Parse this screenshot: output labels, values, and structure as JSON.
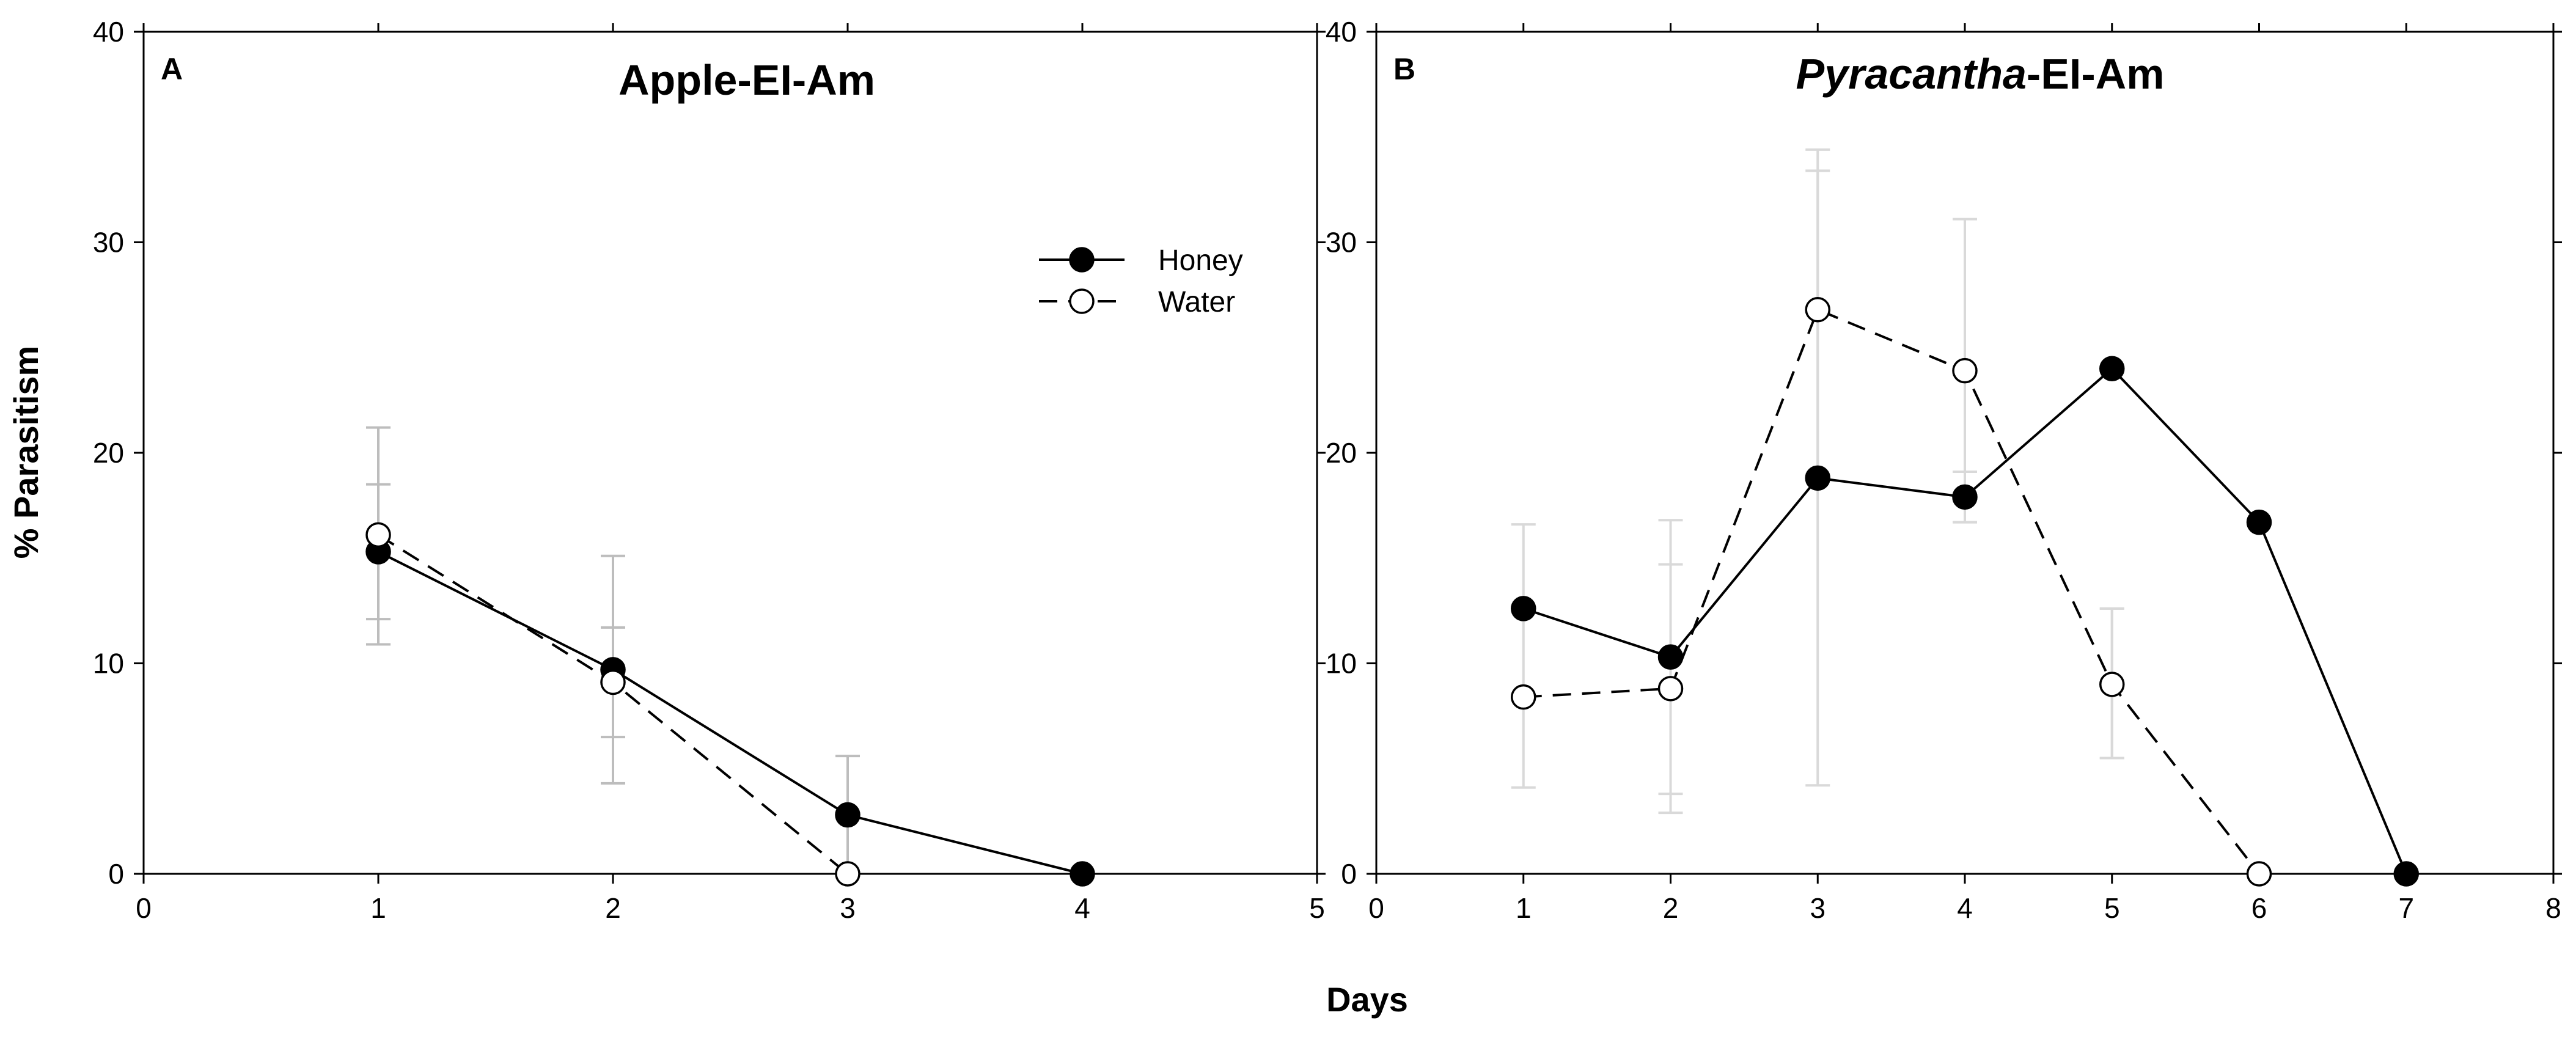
{
  "chart_data": [
    {
      "type": "line",
      "panel_letter": "A",
      "title": "Apple-EI-Am",
      "title_italic_part": "",
      "xlabel": "Days",
      "ylabel": "% Parasitism",
      "xlim": [
        0,
        5
      ],
      "ylim": [
        0,
        40
      ],
      "xticks": [
        0,
        1,
        2,
        3,
        4,
        5
      ],
      "yticks": [
        0,
        10,
        20,
        30,
        40
      ],
      "legend": {
        "position": "top-right",
        "entries": [
          "Honey",
          "Water"
        ]
      },
      "error_bar_color": "#bdbdbd",
      "series": [
        {
          "name": "Honey",
          "marker": "filled-circle",
          "line_style": "solid",
          "x": [
            1,
            2,
            3,
            4
          ],
          "y": [
            15.3,
            9.7,
            2.8,
            0
          ],
          "err_low": [
            10.9,
            4.3,
            0,
            0
          ],
          "err_high": [
            21.2,
            15.1,
            5.6,
            0
          ]
        },
        {
          "name": "Water",
          "marker": "open-circle",
          "line_style": "dashed",
          "x": [
            1,
            2,
            3
          ],
          "y": [
            16.1,
            9.1,
            0
          ],
          "err_low": [
            12.1,
            6.5,
            0
          ],
          "err_high": [
            18.5,
            11.7,
            0
          ]
        }
      ]
    },
    {
      "type": "line",
      "panel_letter": "B",
      "title": "-EI-Am",
      "title_italic_part": "Pyracantha",
      "xlabel": "Days",
      "ylabel": "% Parasitism",
      "xlim": [
        0,
        8
      ],
      "ylim": [
        0,
        40
      ],
      "xticks": [
        0,
        1,
        2,
        3,
        4,
        5,
        6,
        7,
        8
      ],
      "yticks": [
        0,
        10,
        20,
        30,
        40
      ],
      "legend": {
        "position": "none",
        "entries": []
      },
      "error_bar_color": "#d9d9d9",
      "series": [
        {
          "name": "Honey",
          "marker": "filled-circle",
          "line_style": "solid",
          "x": [
            1,
            2,
            3,
            4,
            5,
            6,
            7
          ],
          "y": [
            12.6,
            10.3,
            18.8,
            17.9,
            24.0,
            16.7,
            0
          ],
          "err_low": [
            4.1,
            3.8,
            4.2,
            16.7,
            5.5,
            16.7,
            0
          ],
          "err_high": [
            16.6,
            14.7,
            33.4,
            19.1,
            12.6,
            16.7,
            0
          ]
        },
        {
          "name": "Water",
          "marker": "open-circle",
          "line_style": "dashed",
          "x": [
            1,
            2,
            3,
            4,
            5,
            6
          ],
          "y": [
            8.4,
            8.8,
            26.8,
            23.9,
            9.0,
            0
          ],
          "err_low": [
            8.4,
            2.9,
            19.0,
            16.7,
            5.5,
            0
          ],
          "err_high": [
            8.4,
            16.8,
            34.4,
            31.1,
            12.6,
            0
          ]
        }
      ]
    }
  ]
}
